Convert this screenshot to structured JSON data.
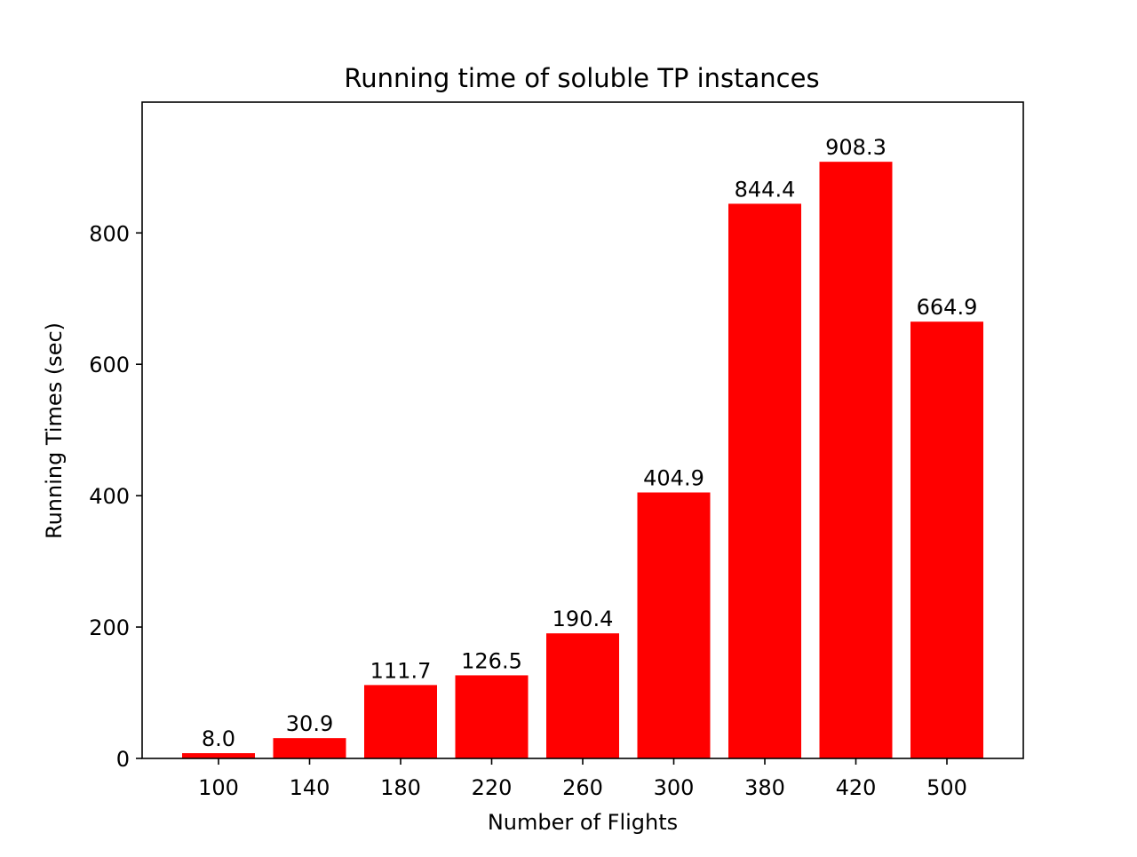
{
  "chart_data": {
    "type": "bar",
    "title": "Running time of soluble TP instances",
    "xlabel": "Number of Flights",
    "ylabel": "Running Times (sec)",
    "categories": [
      "100",
      "140",
      "180",
      "220",
      "260",
      "300",
      "380",
      "420",
      "500"
    ],
    "values": [
      8.0,
      30.9,
      111.7,
      126.5,
      190.4,
      404.9,
      844.4,
      908.3,
      664.9
    ],
    "value_labels": [
      "8.0",
      "30.9",
      "111.7",
      "126.5",
      "190.4",
      "404.9",
      "844.4",
      "908.3",
      "664.9"
    ],
    "yticks": [
      0,
      200,
      400,
      600,
      800
    ],
    "ylim": [
      0,
      999.1
    ],
    "bar_color": "#ff0000",
    "grid": false,
    "legend": "none"
  }
}
